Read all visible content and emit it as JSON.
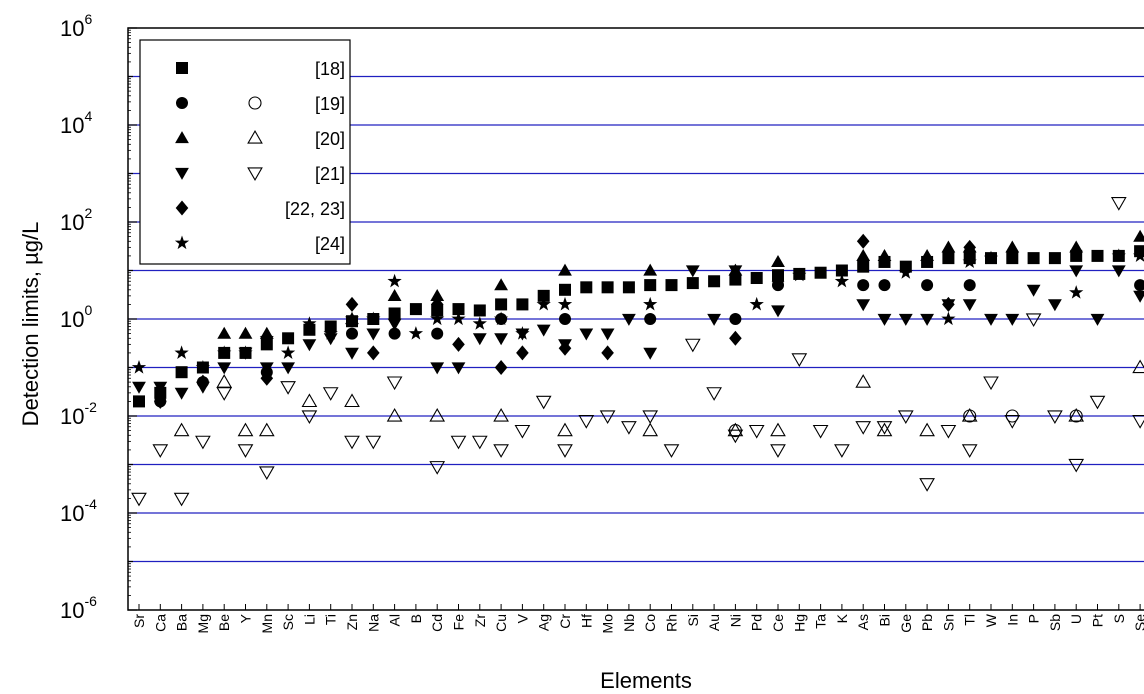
{
  "chart_data": {
    "type": "scatter",
    "title": "",
    "xlabel": "Elements",
    "ylabel": "Detection limits, µg/L",
    "y_scale": "log",
    "ylim": [
      1e-06,
      1000000
    ],
    "y_ticks": [
      {
        "base": "10",
        "exp": "-6"
      },
      {
        "base": "10",
        "exp": "-4"
      },
      {
        "base": "10",
        "exp": "-2"
      },
      {
        "base": "10",
        "exp": "0"
      },
      {
        "base": "10",
        "exp": "2"
      },
      {
        "base": "10",
        "exp": "4"
      },
      {
        "base": "10",
        "exp": "6"
      }
    ],
    "grid": "horizontal lines at each decade",
    "grid_color": "#2020c0",
    "legend_position": "top-left",
    "categories": [
      "Sr",
      "Ca",
      "Ba",
      "Mg",
      "Be",
      "Y",
      "Mn",
      "Sc",
      "Li",
      "Ti",
      "Zn",
      "Na",
      "Al",
      "B",
      "Cd",
      "Fe",
      "Zr",
      "Cu",
      "V",
      "Ag",
      "Cr",
      "Hf",
      "Mo",
      "Nb",
      "Co",
      "Rh",
      "Si",
      "Au",
      "Ni",
      "Pd",
      "Ce",
      "Hg",
      "Ta",
      "K",
      "As",
      "Bi",
      "Ge",
      "Pb",
      "Sn",
      "Tl",
      "W",
      "In",
      "P",
      "Sb",
      "U",
      "Pt",
      "S",
      "Se"
    ],
    "series": [
      {
        "name": "[18]",
        "marker": "filled-square",
        "points": [
          [
            "Sr",
            0.02
          ],
          [
            "Ca",
            0.03
          ],
          [
            "Ba",
            0.08
          ],
          [
            "Mg",
            0.1
          ],
          [
            "Be",
            0.2
          ],
          [
            "Y",
            0.2
          ],
          [
            "Mn",
            0.3
          ],
          [
            "Sc",
            0.4
          ],
          [
            "Li",
            0.6
          ],
          [
            "Ti",
            0.7
          ],
          [
            "Zn",
            0.9
          ],
          [
            "Na",
            1
          ],
          [
            "Al",
            1.3
          ],
          [
            "B",
            1.6
          ],
          [
            "Cd",
            1.5
          ],
          [
            "Fe",
            1.6
          ],
          [
            "Zr",
            1.5
          ],
          [
            "Cu",
            2
          ],
          [
            "V",
            2
          ],
          [
            "Ag",
            3
          ],
          [
            "Cr",
            4
          ],
          [
            "Hf",
            4.5
          ],
          [
            "Mo",
            4.5
          ],
          [
            "Nb",
            4.5
          ],
          [
            "Co",
            5
          ],
          [
            "Rh",
            5
          ],
          [
            "Si",
            5.5
          ],
          [
            "Au",
            6
          ],
          [
            "Ni",
            6.5
          ],
          [
            "Pd",
            7
          ],
          [
            "Ce",
            8
          ],
          [
            "Hg",
            8.5
          ],
          [
            "Ta",
            9
          ],
          [
            "K",
            10
          ],
          [
            "As",
            12
          ],
          [
            "Bi",
            15
          ],
          [
            "Ge",
            12
          ],
          [
            "Pb",
            15
          ],
          [
            "Sn",
            18
          ],
          [
            "Tl",
            18
          ],
          [
            "W",
            18
          ],
          [
            "In",
            18
          ],
          [
            "P",
            18
          ],
          [
            "Sb",
            18
          ],
          [
            "U",
            20
          ],
          [
            "Pt",
            20
          ],
          [
            "S",
            20
          ],
          [
            "Se",
            25
          ]
        ]
      },
      {
        "name": "[19]",
        "marker": "filled-circle",
        "points": [
          [
            "Ca",
            0.02
          ],
          [
            "Mg",
            0.05
          ],
          [
            "Mn",
            0.08
          ],
          [
            "Zn",
            0.5
          ],
          [
            "Al",
            0.5
          ],
          [
            "Cd",
            0.5
          ],
          [
            "Cu",
            1
          ],
          [
            "Cr",
            1
          ],
          [
            "Co",
            1
          ],
          [
            "Ni",
            1
          ],
          [
            "Ce",
            5
          ],
          [
            "As",
            5
          ],
          [
            "Bi",
            5
          ],
          [
            "Pb",
            5
          ],
          [
            "Tl",
            5
          ],
          [
            "Se",
            5
          ]
        ]
      },
      {
        "name": "[19] open",
        "marker": "open-circle",
        "points": [
          [
            "Ni",
            0.005
          ],
          [
            "In",
            0.01
          ],
          [
            "U",
            0.01
          ],
          [
            "Tl",
            0.01
          ]
        ]
      },
      {
        "name": "[20]",
        "marker": "filled-triangle-up",
        "points": [
          [
            "Be",
            0.5
          ],
          [
            "Y",
            0.5
          ],
          [
            "Mn",
            0.5
          ],
          [
            "Zn",
            1
          ],
          [
            "Al",
            3
          ],
          [
            "Cd",
            3
          ],
          [
            "Cu",
            5
          ],
          [
            "Cr",
            10
          ],
          [
            "Co",
            10
          ],
          [
            "Ni",
            10
          ],
          [
            "Ce",
            15
          ],
          [
            "As",
            20
          ],
          [
            "Bi",
            20
          ],
          [
            "Pb",
            20
          ],
          [
            "Sn",
            30
          ],
          [
            "Tl",
            30
          ],
          [
            "In",
            30
          ],
          [
            "U",
            30
          ],
          [
            "Se",
            50
          ]
        ]
      },
      {
        "name": "[20] open",
        "marker": "open-triangle-up",
        "points": [
          [
            "Ba",
            0.005
          ],
          [
            "Be",
            0.05
          ],
          [
            "Y",
            0.005
          ],
          [
            "Mn",
            0.005
          ],
          [
            "Li",
            0.02
          ],
          [
            "Zn",
            0.02
          ],
          [
            "Al",
            0.01
          ],
          [
            "Cd",
            0.01
          ],
          [
            "Cu",
            0.01
          ],
          [
            "Cr",
            0.005
          ],
          [
            "Co",
            0.005
          ],
          [
            "Ni",
            0.005
          ],
          [
            "Ce",
            0.005
          ],
          [
            "As",
            0.05
          ],
          [
            "Bi",
            0.005
          ],
          [
            "Pb",
            0.005
          ],
          [
            "Tl",
            0.01
          ],
          [
            "U",
            0.01
          ],
          [
            "Se",
            0.1
          ]
        ]
      },
      {
        "name": "[21]",
        "marker": "filled-triangle-down",
        "points": [
          [
            "Sr",
            0.04
          ],
          [
            "Ca",
            0.04
          ],
          [
            "Ba",
            0.03
          ],
          [
            "Mg",
            0.04
          ],
          [
            "Be",
            0.1
          ],
          [
            "Y",
            0.2
          ],
          [
            "Mn",
            0.1
          ],
          [
            "Sc",
            0.1
          ],
          [
            "Li",
            0.3
          ],
          [
            "Ti",
            0.4
          ],
          [
            "Zn",
            0.2
          ],
          [
            "Na",
            0.5
          ],
          [
            "Al",
            0.8
          ],
          [
            "Cd",
            0.1
          ],
          [
            "Fe",
            0.1
          ],
          [
            "Zr",
            0.4
          ],
          [
            "Cu",
            0.4
          ],
          [
            "V",
            0.5
          ],
          [
            "Ag",
            0.6
          ],
          [
            "Cr",
            0.3
          ],
          [
            "Hf",
            0.5
          ],
          [
            "Mo",
            0.5
          ],
          [
            "Nb",
            1
          ],
          [
            "Co",
            0.2
          ],
          [
            "Si",
            10
          ],
          [
            "Au",
            1
          ],
          [
            "Ni",
            10
          ],
          [
            "Ce",
            1.5
          ],
          [
            "As",
            2
          ],
          [
            "Bi",
            1
          ],
          [
            "Ge",
            1
          ],
          [
            "Pb",
            1
          ],
          [
            "Sn",
            2
          ],
          [
            "Tl",
            2
          ],
          [
            "W",
            1
          ],
          [
            "In",
            1
          ],
          [
            "P",
            4
          ],
          [
            "Sb",
            2
          ],
          [
            "U",
            10
          ],
          [
            "Pt",
            1
          ],
          [
            "S",
            10
          ],
          [
            "Se",
            3
          ]
        ]
      },
      {
        "name": "[21] open",
        "marker": "open-triangle-down",
        "points": [
          [
            "Sr",
            0.0002
          ],
          [
            "Ca",
            0.002
          ],
          [
            "Ba",
            0.0002
          ],
          [
            "Mg",
            0.003
          ],
          [
            "Be",
            0.03
          ],
          [
            "Y",
            0.002
          ],
          [
            "Mn",
            0.0007
          ],
          [
            "Sc",
            0.04
          ],
          [
            "Li",
            0.01
          ],
          [
            "Ti",
            0.03
          ],
          [
            "Zn",
            0.003
          ],
          [
            "Na",
            0.003
          ],
          [
            "Al",
            0.05
          ],
          [
            "Cd",
            0.0009
          ],
          [
            "Fe",
            0.003
          ],
          [
            "Zr",
            0.003
          ],
          [
            "Cu",
            0.002
          ],
          [
            "V",
            0.005
          ],
          [
            "Ag",
            0.02
          ],
          [
            "Cr",
            0.002
          ],
          [
            "Hf",
            0.008
          ],
          [
            "Mo",
            0.01
          ],
          [
            "Nb",
            0.006
          ],
          [
            "Co",
            0.01
          ],
          [
            "Rh",
            0.002
          ],
          [
            "Si",
            0.3
          ],
          [
            "Au",
            0.03
          ],
          [
            "Ni",
            0.004
          ],
          [
            "Pd",
            0.005
          ],
          [
            "Ce",
            0.002
          ],
          [
            "Hg",
            0.15
          ],
          [
            "Ta",
            0.005
          ],
          [
            "K",
            0.002
          ],
          [
            "As",
            0.006
          ],
          [
            "Bi",
            0.006
          ],
          [
            "Ge",
            0.01
          ],
          [
            "Pb",
            0.0004
          ],
          [
            "Sn",
            0.005
          ],
          [
            "Tl",
            0.002
          ],
          [
            "W",
            0.05
          ],
          [
            "In",
            0.008
          ],
          [
            "P",
            1
          ],
          [
            "Sb",
            0.01
          ],
          [
            "U",
            0.001
          ],
          [
            "Pt",
            0.02
          ],
          [
            "S",
            250
          ],
          [
            "Se",
            0.008
          ]
        ]
      },
      {
        "name": "[22, 23]",
        "marker": "filled-diamond",
        "points": [
          [
            "Ca",
            0.02
          ],
          [
            "Mg",
            0.05
          ],
          [
            "Mn",
            0.06
          ],
          [
            "Zn",
            2
          ],
          [
            "Na",
            0.2
          ],
          [
            "Al",
            1
          ],
          [
            "Cd",
            2
          ],
          [
            "Fe",
            0.3
          ],
          [
            "Cu",
            0.1
          ],
          [
            "V",
            0.2
          ],
          [
            "Cr",
            0.25
          ],
          [
            "Mo",
            0.2
          ],
          [
            "Ni",
            0.4
          ],
          [
            "Ce",
            6
          ],
          [
            "As",
            40
          ],
          [
            "Sn",
            2
          ],
          [
            "Tl",
            30
          ]
        ]
      },
      {
        "name": "[24]",
        "marker": "star",
        "points": [
          [
            "Sr",
            0.1
          ],
          [
            "Ba",
            0.2
          ],
          [
            "Mg",
            0.1
          ],
          [
            "Be",
            0.2
          ],
          [
            "Y",
            0.2
          ],
          [
            "Mn",
            0.4
          ],
          [
            "Sc",
            0.2
          ],
          [
            "Li",
            0.8
          ],
          [
            "Ti",
            0.5
          ],
          [
            "Zn",
            1
          ],
          [
            "Na",
            1
          ],
          [
            "Al",
            6
          ],
          [
            "B",
            0.5
          ],
          [
            "Cd",
            1
          ],
          [
            "Fe",
            1
          ],
          [
            "Zr",
            0.8
          ],
          [
            "Cu",
            1
          ],
          [
            "V",
            0.5
          ],
          [
            "Ag",
            2
          ],
          [
            "Cr",
            2
          ],
          [
            "Co",
            2
          ],
          [
            "Pd",
            2
          ],
          [
            "Hg",
            8
          ],
          [
            "K",
            6
          ],
          [
            "Ge",
            9
          ],
          [
            "Sn",
            1
          ],
          [
            "Tl",
            15
          ],
          [
            "W",
            18
          ],
          [
            "U",
            3.5
          ],
          [
            "S",
            20
          ],
          [
            "Se",
            20
          ]
        ]
      }
    ],
    "legend": [
      {
        "label": "[18]",
        "markers": [
          "filled-square"
        ]
      },
      {
        "label": "[19]",
        "markers": [
          "filled-circle",
          "open-circle"
        ]
      },
      {
        "label": "[20]",
        "markers": [
          "filled-triangle-up",
          "open-triangle-up"
        ]
      },
      {
        "label": "[21]",
        "markers": [
          "filled-triangle-down",
          "open-triangle-down"
        ]
      },
      {
        "label": "[22, 23]",
        "markers": [
          "filled-diamond"
        ]
      },
      {
        "label": "[24]",
        "markers": [
          "star"
        ]
      }
    ]
  }
}
